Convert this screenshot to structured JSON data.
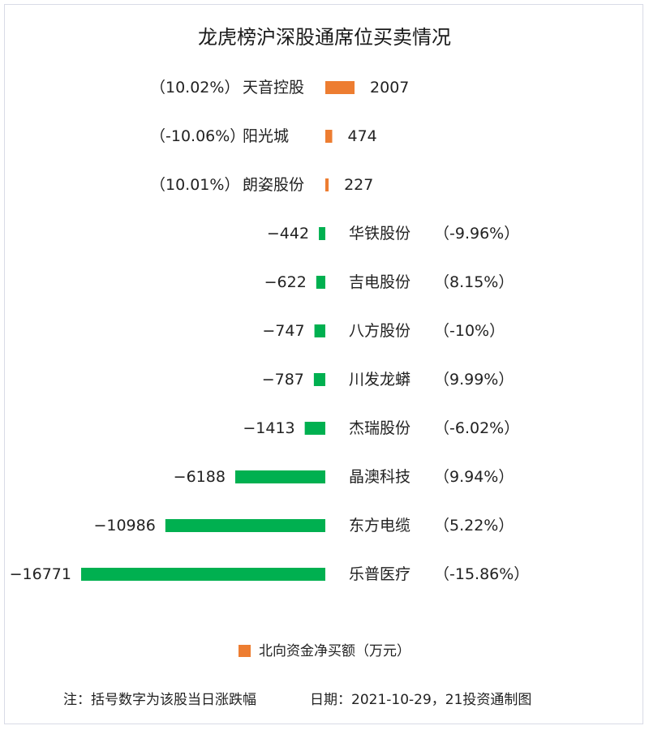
{
  "chart_data": {
    "type": "bar",
    "orientation": "horizontal",
    "title": "龙虎榜沪深股通席位买卖情况",
    "stocks": [
      {
        "name": "天音控股",
        "value": 2007,
        "change": "（10.02%）"
      },
      {
        "name": "阳光城",
        "value": 474,
        "change": "（-10.06%）"
      },
      {
        "name": "朗姿股份",
        "value": 227,
        "change": "（10.01%）"
      },
      {
        "name": "华铁股份",
        "value": -442,
        "change": "（-9.96%）"
      },
      {
        "name": "吉电股份",
        "value": -622,
        "change": "（8.15%）"
      },
      {
        "name": "八方股份",
        "value": -747,
        "change": "（-10%）"
      },
      {
        "name": "川发龙蟒",
        "value": -787,
        "change": "（9.99%）"
      },
      {
        "name": "杰瑞股份",
        "value": -1413,
        "change": "（-6.02%）"
      },
      {
        "name": "晶澳科技",
        "value": -6188,
        "change": "（9.94%）"
      },
      {
        "name": "东方电缆",
        "value": -10986,
        "change": "（5.22%）"
      },
      {
        "name": "乐普医疗",
        "value": -16771,
        "change": "（-15.86%）"
      }
    ],
    "legend": {
      "label": "北向资金净买额（万元）",
      "position": "bottom"
    },
    "colors": {
      "positive": "#ed7d31",
      "negative": "#00b050"
    }
  },
  "footer": {
    "note": "注：括号数字为该股当日涨跌幅",
    "date_source": "日期：2021-10-29，21投资通制图"
  }
}
